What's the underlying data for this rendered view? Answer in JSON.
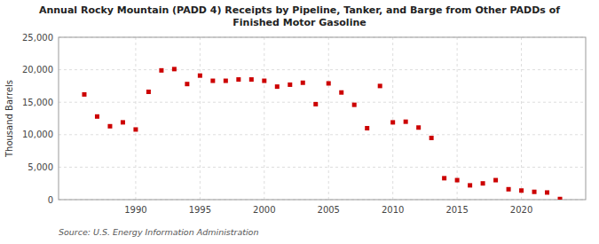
{
  "chart_data": {
    "type": "scatter",
    "title": "Annual Rocky Mountain (PADD 4) Receipts by Pipeline, Tanker, and Barge from Other PADDs of\nFinished Motor Gasoline",
    "y_label": "Thousand Barrels",
    "source": "Source: U.S. Energy Information Administration",
    "color": "#cc0000",
    "marker": "square",
    "grid": true,
    "x": [
      1986,
      1987,
      1988,
      1989,
      1990,
      1991,
      1992,
      1993,
      1994,
      1995,
      1996,
      1997,
      1998,
      1999,
      2000,
      2001,
      2002,
      2003,
      2004,
      2005,
      2006,
      2007,
      2008,
      2009,
      2010,
      2011,
      2012,
      2013,
      2014,
      2015,
      2016,
      2017,
      2018,
      2019,
      2020,
      2021,
      2022,
      2023
    ],
    "values": [
      16200,
      12800,
      11300,
      11900,
      10800,
      16600,
      19900,
      20100,
      17800,
      19100,
      18300,
      18300,
      18500,
      18500,
      18300,
      17400,
      17700,
      18000,
      14700,
      17900,
      16500,
      14600,
      11000,
      17500,
      11900,
      12000,
      11100,
      9500,
      3300,
      3000,
      2200,
      2500,
      3000,
      1600,
      1400,
      1200,
      1100,
      100
    ],
    "xlim": [
      1984,
      2025
    ],
    "xticks": [
      1990,
      1995,
      2000,
      2005,
      2010,
      2015,
      2020
    ],
    "ylim": [
      0,
      25000
    ],
    "yticks": [
      0,
      {
        "value": 5000,
        "label": "5,000"
      },
      {
        "value": 10000,
        "label": "10,000"
      },
      {
        "value": 15000,
        "label": "15,000"
      },
      {
        "value": 20000,
        "label": "20,000"
      },
      {
        "value": 25000,
        "label": "25,000"
      }
    ]
  }
}
